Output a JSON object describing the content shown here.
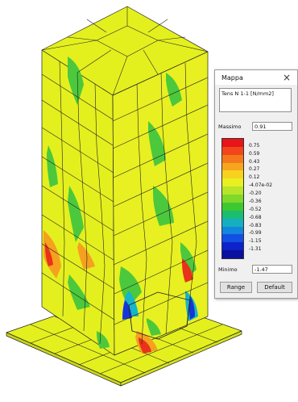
{
  "panel": {
    "title": "Mappa",
    "quantity": "Tens N 1-1 [N/mm2]",
    "max_label": "Massimo",
    "max_value": "0.91",
    "min_label": "Minimo",
    "min_value": "-1.47",
    "range_button": "Range",
    "default_button": "Default"
  },
  "legend": {
    "ticks": [
      "0.75",
      "0.59",
      "0.43",
      "0.27",
      "0.12",
      "-4.07e-02",
      "-0.20",
      "-0.36",
      "-0.52",
      "-0.68",
      "-0.83",
      "-0.99",
      "-1.15",
      "-1.31"
    ],
    "colors": [
      "#e8141a",
      "#f2461a",
      "#f4781c",
      "#f8a51e",
      "#f9d21f",
      "#e8f021",
      "#b8e52a",
      "#7fd82c",
      "#3ec82f",
      "#1bbd71",
      "#15b0c0",
      "#1386dd",
      "#1150e3",
      "#0d22c8",
      "#0a10a0"
    ]
  },
  "model": {
    "description_colors": {
      "base": "#e4f01e",
      "warm": "#f6a020",
      "hot": "#e8321a",
      "green": "#4cc83c",
      "cyan": "#18b4c8",
      "blue": "#1436d8"
    }
  }
}
